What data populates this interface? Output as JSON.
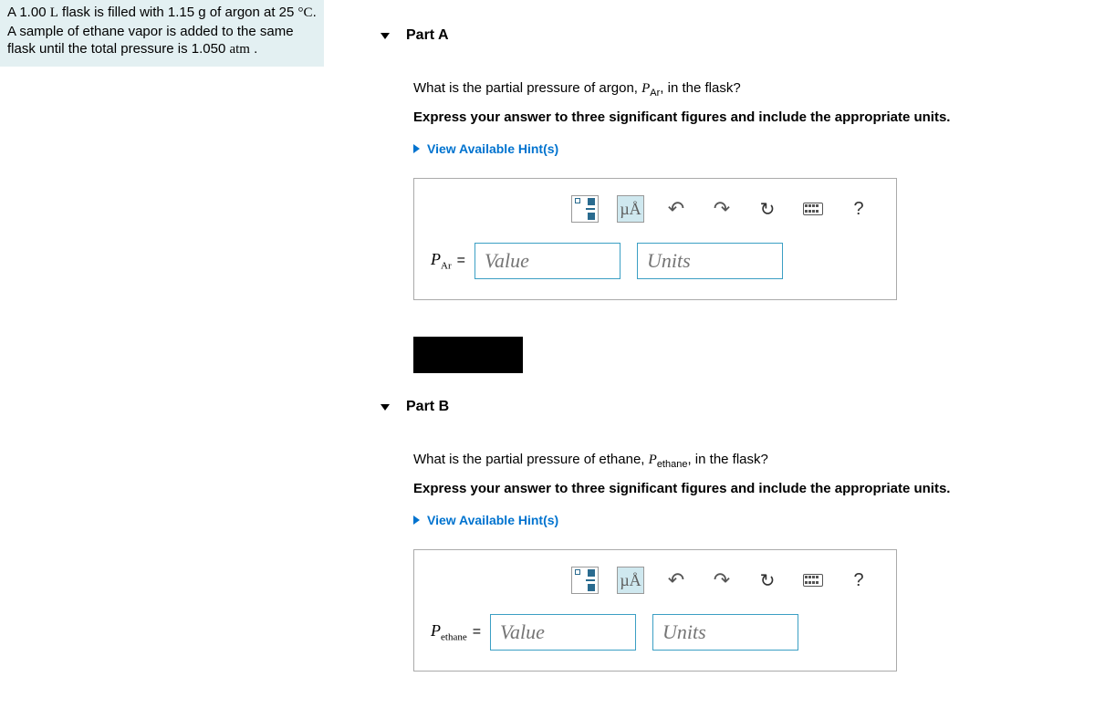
{
  "problem": {
    "text_prefix": "A 1.00 ",
    "var1": "L",
    "text_mid1": " flask is filled with 1.15 g of argon at 25 ",
    "deg": "°C",
    "text_mid2": ". A sample of ethane vapor is added to the same flask until the total pressure is 1.050 ",
    "var2": "atm",
    "text_end": " ."
  },
  "partA": {
    "title": "Part A",
    "question_pre": "What is the partial pressure of argon, ",
    "var": "P",
    "var_sub": "Ar",
    "question_post": ", in the flask?",
    "instruction": "Express your answer to three significant figures and include the appropriate units.",
    "hint": "View Available Hint(s)",
    "label_var": "P",
    "label_sub": "Ar",
    "eq": "=",
    "value_ph": "Value",
    "units_ph": "Units",
    "mua": "µÅ"
  },
  "partB": {
    "title": "Part B",
    "question_pre": "What is the partial pressure of ethane, ",
    "var": "P",
    "var_sub": "ethane",
    "question_post": ", in the flask?",
    "instruction": "Express your answer to three significant figures and include the appropriate units.",
    "hint": "View Available Hint(s)",
    "label_var": "P",
    "label_sub": "ethane",
    "eq": "=",
    "value_ph": "Value",
    "units_ph": "Units",
    "mua": "µÅ"
  },
  "icons": {
    "help": "?"
  }
}
